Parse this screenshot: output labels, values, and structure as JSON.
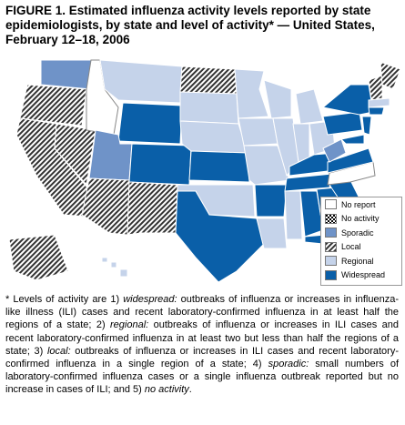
{
  "title": "FIGURE 1. Estimated influenza activity levels reported by state epidemiologists, by state and level of activity* — United States, February 12–18, 2006",
  "legend": [
    "No report",
    "No activity",
    "Sporadic",
    "Local",
    "Regional",
    "Widespread"
  ],
  "footnote": [
    "* Levels of activity are 1) ",
    "widespread:",
    " outbreaks of influenza or increases in influenza-like illness (ILI) cases and recent laboratory-confirmed influenza in at least half the regions of a state; 2) ",
    "regional:",
    " outbreaks of influenza or increases in ILI cases and recent laboratory-confirmed influenza in at least two but less than half the regions of a state; 3) ",
    "local:",
    " outbreaks of influenza or increases in ILI cases and recent laboratory-confirmed influenza in a single region of a state; 4) ",
    "sporadic:",
    " small numbers of laboratory-confirmed influenza cases or a single influenza outbreak reported but no increase in cases of ILI; and 5) ",
    "no activity",
    "."
  ]
}
